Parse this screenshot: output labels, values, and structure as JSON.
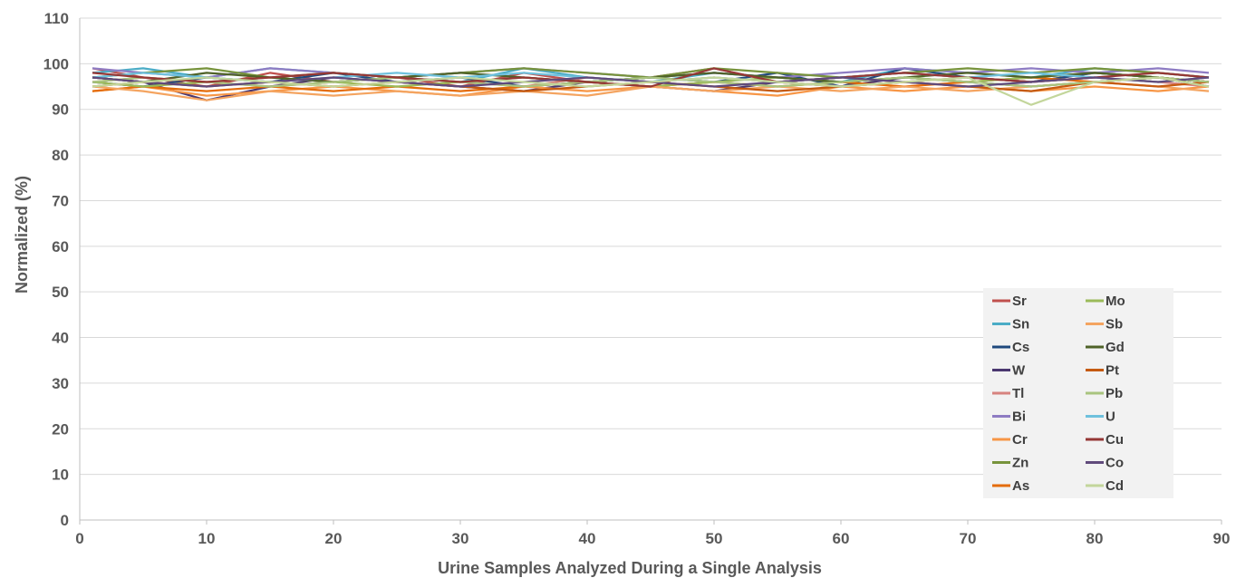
{
  "chart_data": {
    "type": "line",
    "title": "",
    "xlabel": "Urine Samples Analyzed During a Single Analysis",
    "ylabel": "Normalized (%)",
    "xlim": [
      0,
      90
    ],
    "ylim": [
      0,
      110
    ],
    "x_ticks": [
      0,
      10,
      20,
      30,
      40,
      50,
      60,
      70,
      80,
      90
    ],
    "y_ticks": [
      0,
      10,
      20,
      30,
      40,
      50,
      60,
      70,
      80,
      90,
      100,
      110
    ],
    "grid": "horizontal",
    "legend_position": "bottom-right",
    "x": [
      1,
      5,
      10,
      15,
      20,
      25,
      30,
      35,
      40,
      45,
      50,
      55,
      60,
      65,
      70,
      75,
      80,
      85,
      89
    ],
    "series": [
      {
        "name": "Sr",
        "color": "#c0504d",
        "values": [
          99,
          97,
          95,
          98,
          96,
          97,
          95,
          98,
          96,
          97,
          99,
          96,
          97,
          98,
          97,
          96,
          98,
          97,
          96
        ]
      },
      {
        "name": "Sn",
        "color": "#4bacc6",
        "values": [
          98,
          99,
          97,
          99,
          98,
          97,
          96,
          99,
          97,
          96,
          98,
          97,
          96,
          99,
          98,
          97,
          99,
          98,
          97
        ]
      },
      {
        "name": "Cs",
        "color": "#1f497d",
        "values": [
          96,
          95,
          97,
          96,
          98,
          96,
          97,
          95,
          96,
          97,
          96,
          98,
          95,
          99,
          97,
          96,
          98,
          97,
          96
        ]
      },
      {
        "name": "W",
        "color": "#4a3770",
        "values": [
          97,
          96,
          92,
          95,
          97,
          96,
          95,
          94,
          96,
          95,
          94,
          96,
          95,
          97,
          96,
          95,
          96,
          97,
          95
        ]
      },
      {
        "name": "Tl",
        "color": "#d7837f",
        "values": [
          96,
          97,
          96,
          95,
          96,
          97,
          96,
          95,
          97,
          96,
          97,
          96,
          95,
          96,
          97,
          96,
          97,
          96,
          95
        ]
      },
      {
        "name": "Bi",
        "color": "#8e7cc3",
        "values": [
          99,
          98,
          97,
          99,
          98,
          97,
          98,
          99,
          98,
          97,
          98,
          97,
          98,
          99,
          98,
          99,
          98,
          99,
          98
        ]
      },
      {
        "name": "Cr",
        "color": "#f79646",
        "values": [
          94,
          95,
          93,
          94,
          95,
          94,
          93,
          95,
          94,
          95,
          94,
          93,
          95,
          94,
          95,
          94,
          95,
          94,
          95
        ]
      },
      {
        "name": "Zn",
        "color": "#77933c",
        "values": [
          97,
          98,
          99,
          97,
          98,
          97,
          98,
          99,
          98,
          97,
          99,
          98,
          97,
          98,
          99,
          98,
          99,
          98,
          97
        ]
      },
      {
        "name": "As",
        "color": "#e46c0a",
        "values": [
          94,
          95,
          94,
          95,
          94,
          95,
          94,
          95,
          96,
          95,
          96,
          95,
          96,
          95,
          96,
          97,
          96,
          97,
          96
        ]
      },
      {
        "name": "Mo",
        "color": "#9bbb59",
        "values": [
          96,
          95,
          96,
          97,
          96,
          95,
          96,
          97,
          96,
          95,
          96,
          97,
          96,
          97,
          96,
          97,
          98,
          97,
          96
        ]
      },
      {
        "name": "Sb",
        "color": "#f4a460",
        "values": [
          95,
          94,
          92,
          94,
          93,
          94,
          93,
          94,
          93,
          95,
          94,
          95,
          94,
          95,
          94,
          95,
          96,
          95,
          94
        ]
      },
      {
        "name": "Gd",
        "color": "#4f6228",
        "values": [
          97,
          96,
          98,
          97,
          96,
          97,
          98,
          97,
          96,
          97,
          98,
          97,
          96,
          97,
          98,
          97,
          98,
          97,
          96
        ]
      },
      {
        "name": "Pt",
        "color": "#c55a11",
        "values": [
          95,
          96,
          95,
          96,
          95,
          96,
          95,
          94,
          95,
          96,
          95,
          94,
          95,
          96,
          95,
          94,
          96,
          95,
          96
        ]
      },
      {
        "name": "Pb",
        "color": "#a9c47f",
        "values": [
          96,
          97,
          96,
          95,
          96,
          97,
          96,
          95,
          96,
          97,
          96,
          95,
          96,
          97,
          96,
          95,
          96,
          97,
          96
        ]
      },
      {
        "name": "U",
        "color": "#6fc1dd",
        "values": [
          97,
          98,
          97,
          96,
          97,
          98,
          97,
          98,
          97,
          96,
          97,
          96,
          97,
          98,
          97,
          98,
          97,
          96,
          97
        ]
      },
      {
        "name": "Cu",
        "color": "#953735",
        "values": [
          98,
          97,
          96,
          97,
          98,
          97,
          96,
          97,
          96,
          95,
          99,
          96,
          97,
          98,
          97,
          96,
          97,
          98,
          97
        ]
      },
      {
        "name": "Co",
        "color": "#604a7b",
        "values": [
          97,
          96,
          95,
          96,
          97,
          96,
          95,
          96,
          97,
          96,
          95,
          96,
          97,
          96,
          95,
          96,
          97,
          96,
          97
        ]
      },
      {
        "name": "Cd",
        "color": "#c3d69b",
        "values": [
          95,
          96,
          97,
          96,
          95,
          96,
          97,
          96,
          95,
          96,
          97,
          96,
          95,
          96,
          97,
          91,
          96,
          97,
          95
        ]
      }
    ]
  }
}
